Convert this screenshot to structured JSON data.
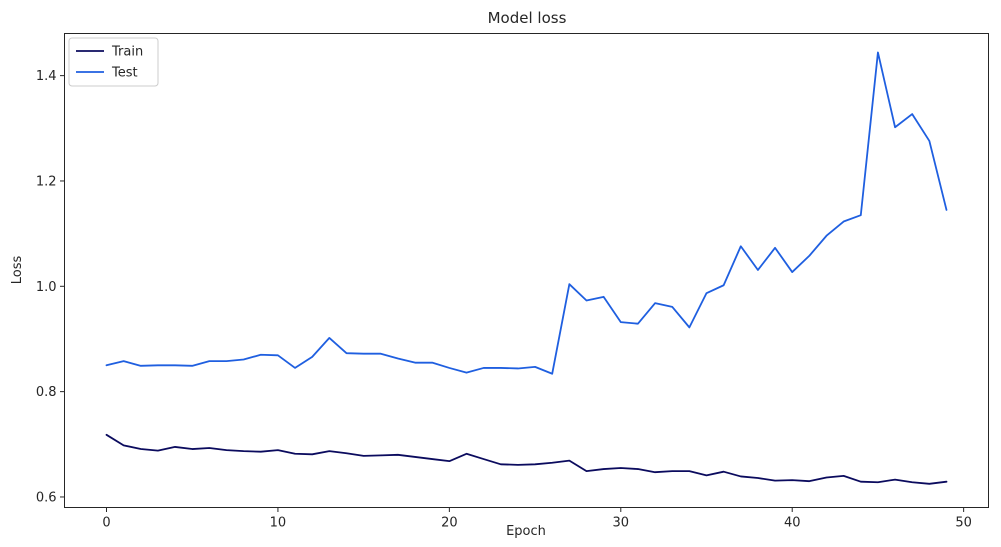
{
  "chart_data": {
    "type": "line",
    "title": "Model loss",
    "xlabel": "Epoch",
    "ylabel": "Loss",
    "xlim": [
      -2.45,
      51.45
    ],
    "ylim": [
      0.58,
      1.48
    ],
    "xticks": [
      0,
      10,
      20,
      30,
      40,
      50
    ],
    "yticks": [
      0.6,
      0.8,
      1.0,
      1.2,
      1.4
    ],
    "ytick_labels": [
      "0.6",
      "0.8",
      "1.0",
      "1.2",
      "1.4"
    ],
    "grid": false,
    "legend_position": "upper-left",
    "x": [
      0,
      1,
      2,
      3,
      4,
      5,
      6,
      7,
      8,
      9,
      10,
      11,
      12,
      13,
      14,
      15,
      16,
      17,
      18,
      19,
      20,
      21,
      22,
      23,
      24,
      25,
      26,
      27,
      28,
      29,
      30,
      31,
      32,
      33,
      34,
      35,
      36,
      37,
      38,
      39,
      40,
      41,
      42,
      43,
      44,
      45,
      46,
      47,
      48,
      49
    ],
    "series": [
      {
        "name": "Train",
        "color": "#0b0b5e",
        "values": [
          0.718,
          0.698,
          0.691,
          0.688,
          0.695,
          0.691,
          0.693,
          0.689,
          0.687,
          0.686,
          0.689,
          0.682,
          0.681,
          0.687,
          0.683,
          0.678,
          0.679,
          0.68,
          0.676,
          0.672,
          0.668,
          0.682,
          0.672,
          0.662,
          0.661,
          0.662,
          0.665,
          0.669,
          0.649,
          0.653,
          0.655,
          0.653,
          0.647,
          0.649,
          0.649,
          0.641,
          0.648,
          0.639,
          0.636,
          0.631,
          0.632,
          0.63,
          0.637,
          0.64,
          0.629,
          0.628,
          0.633,
          0.628,
          0.625,
          0.629
        ]
      },
      {
        "name": "Test",
        "color": "#1f5fe0",
        "values": [
          0.85,
          0.858,
          0.849,
          0.85,
          0.85,
          0.849,
          0.858,
          0.858,
          0.861,
          0.87,
          0.869,
          0.845,
          0.866,
          0.902,
          0.873,
          0.872,
          0.872,
          0.863,
          0.855,
          0.855,
          0.845,
          0.836,
          0.845,
          0.845,
          0.844,
          0.847,
          0.834,
          1.004,
          0.973,
          0.98,
          0.932,
          0.929,
          0.968,
          0.961,
          0.922,
          0.987,
          1.002,
          1.076,
          1.031,
          1.073,
          1.027,
          1.058,
          1.096,
          1.123,
          1.135,
          1.444,
          1.302,
          1.327,
          1.276,
          1.145
        ]
      }
    ]
  }
}
